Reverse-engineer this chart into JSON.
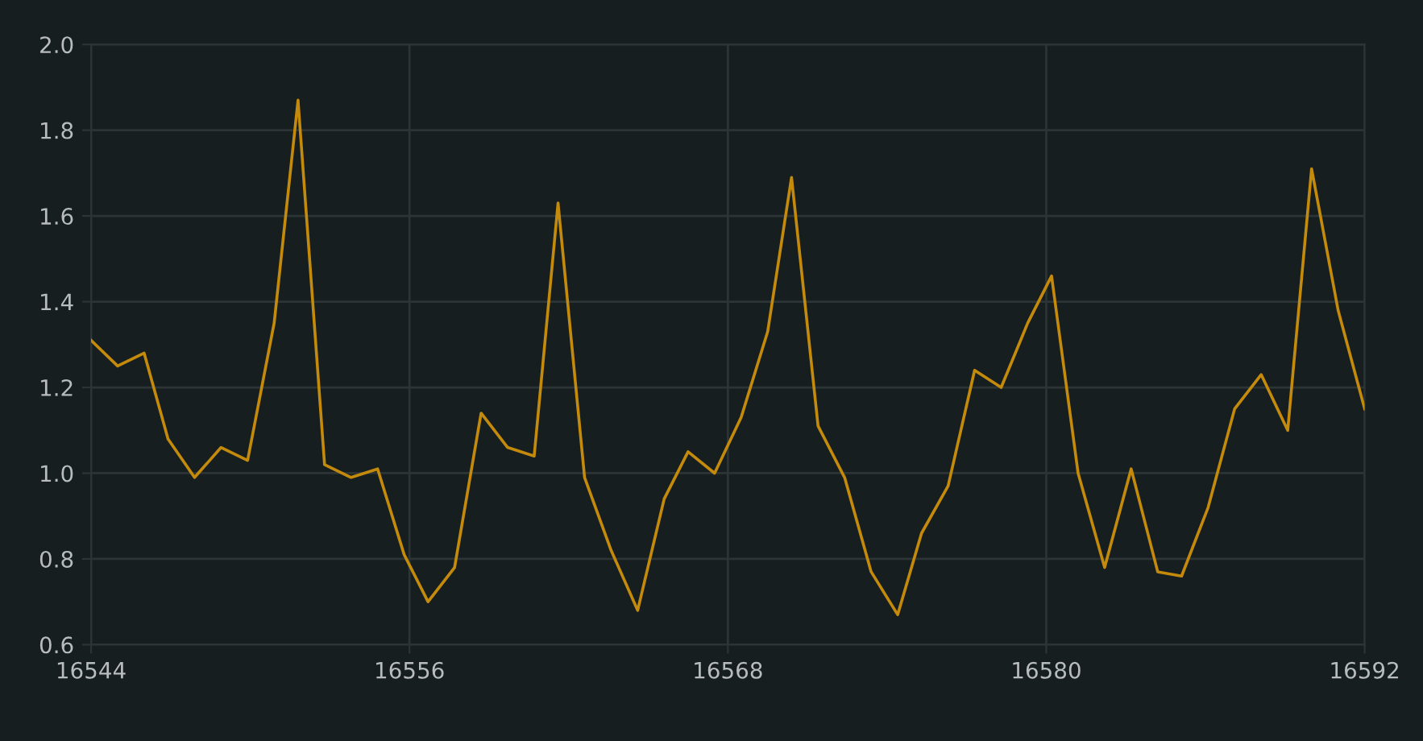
{
  "chart_data": {
    "type": "line",
    "x": [
      16544,
      16545.0,
      16546.0,
      16546.9,
      16547.9,
      16548.9,
      16549.9,
      16550.9,
      16551.8,
      16552.8,
      16553.8,
      16554.8,
      16555.8,
      16556.7,
      16557.7,
      16558.7,
      16559.7,
      16560.7,
      16561.6,
      16562.6,
      16563.6,
      16564.6,
      16565.6,
      16566.5,
      16567.5,
      16568.5,
      16569.5,
      16570.4,
      16571.4,
      16572.4,
      16573.4,
      16574.4,
      16575.3,
      16576.3,
      16577.3,
      16578.3,
      16579.3,
      16580.2,
      16581.2,
      16582.2,
      16583.2,
      16584.2,
      16585.1,
      16586.1,
      16587.1,
      16588.1,
      16589.1,
      16590.0,
      16591.0,
      16592.0
    ],
    "series": [
      {
        "color": "#c38a0c",
        "values": [
          1.31,
          1.25,
          1.28,
          1.08,
          0.99,
          1.06,
          1.03,
          1.35,
          1.87,
          1.02,
          0.99,
          1.01,
          0.81,
          0.7,
          0.78,
          1.14,
          1.06,
          1.04,
          1.63,
          0.99,
          0.82,
          0.68,
          0.94,
          1.05,
          1.0,
          1.13,
          1.33,
          1.69,
          1.11,
          0.99,
          0.77,
          0.67,
          0.86,
          0.97,
          1.24,
          1.2,
          1.35,
          1.46,
          1.0,
          0.78,
          1.01,
          0.77,
          0.76,
          0.92,
          1.15,
          1.23,
          1.1,
          1.71,
          1.38,
          1.15
        ]
      }
    ],
    "xlim": [
      16544,
      16592
    ],
    "xticks": [
      16544,
      16556,
      16568,
      16580,
      16592
    ],
    "ylim": [
      0.6,
      2.0
    ],
    "yticks": [
      {
        "value": 0.6,
        "label": "0.6"
      },
      {
        "value": 0.8,
        "label": "0.8"
      },
      {
        "value": 1.0,
        "label": "1.0"
      },
      {
        "value": 1.2,
        "label": "1.2"
      },
      {
        "value": 1.4,
        "label": "1.4"
      },
      {
        "value": 1.6,
        "label": "1.6"
      },
      {
        "value": 1.8,
        "label": "1.8"
      },
      {
        "value": 2.0,
        "label": "2.0"
      }
    ],
    "grid": true,
    "marker": "none",
    "line_style": "solid"
  }
}
